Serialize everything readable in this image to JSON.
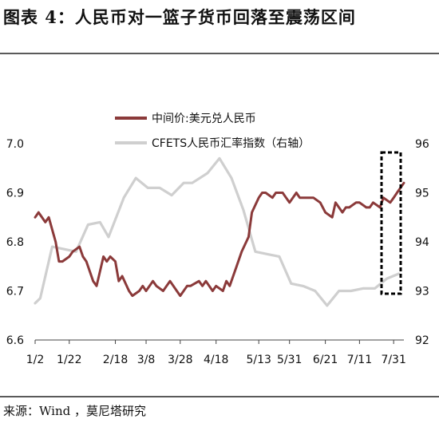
{
  "title": "图表 4：人民币对一篮子货币回落至震荡区间",
  "source": "来源：Wind ，莫尼塔研究",
  "chart_data": {
    "type": "line",
    "title": "图表 4：人民币对一篮子货币回落至震荡区间",
    "x_tick_labels": [
      "1/2",
      "1/22",
      "2/18",
      "3/8",
      "3/28",
      "4/18",
      "5/13",
      "5/31",
      "6/21",
      "7/11",
      "7/31"
    ],
    "y_left": {
      "ticks": [
        "6.6",
        "6.7",
        "6.8",
        "6.9",
        "7.0"
      ],
      "range": [
        6.6,
        7.0
      ]
    },
    "y_right": {
      "ticks": [
        "92",
        "93",
        "94",
        "95",
        "96"
      ],
      "range": [
        92,
        96
      ]
    },
    "grid": false,
    "legend_position": "top-center",
    "series": [
      {
        "name": "中间价:美元兑人民币",
        "axis": "left",
        "color": "#8b3a3a",
        "x": [
          "1/2",
          "1/4",
          "1/8",
          "1/10",
          "1/14",
          "1/16",
          "1/18",
          "1/22",
          "1/24",
          "1/28",
          "1/30",
          "2/1",
          "2/5",
          "2/7",
          "2/11",
          "2/13",
          "2/15",
          "2/18",
          "2/20",
          "2/22",
          "2/26",
          "2/28",
          "3/4",
          "3/6",
          "3/8",
          "3/12",
          "3/14",
          "3/18",
          "3/20",
          "3/22",
          "3/26",
          "3/28",
          "4/1",
          "4/3",
          "4/8",
          "4/10",
          "4/12",
          "4/16",
          "4/18",
          "4/22",
          "4/24",
          "4/26",
          "4/30",
          "5/3",
          "5/7",
          "5/9",
          "5/13",
          "5/15",
          "5/17",
          "5/21",
          "5/23",
          "5/27",
          "5/29",
          "5/31",
          "6/4",
          "6/6",
          "6/10",
          "6/12",
          "6/14",
          "6/18",
          "6/21",
          "6/25",
          "6/27",
          "7/1",
          "7/3",
          "7/5",
          "7/9",
          "7/11",
          "7/15",
          "7/17",
          "7/19",
          "7/23",
          "7/25",
          "7/29",
          "7/31",
          "8/2",
          "8/6"
        ],
        "values": [
          6.85,
          6.86,
          6.84,
          6.85,
          6.8,
          6.76,
          6.76,
          6.77,
          6.78,
          6.79,
          6.77,
          6.76,
          6.72,
          6.71,
          6.77,
          6.76,
          6.77,
          6.76,
          6.72,
          6.73,
          6.7,
          6.69,
          6.7,
          6.71,
          6.7,
          6.72,
          6.71,
          6.7,
          6.71,
          6.72,
          6.7,
          6.69,
          6.71,
          6.71,
          6.72,
          6.71,
          6.72,
          6.7,
          6.71,
          6.7,
          6.72,
          6.71,
          6.75,
          6.78,
          6.81,
          6.86,
          6.89,
          6.9,
          6.9,
          6.89,
          6.9,
          6.9,
          6.89,
          6.88,
          6.9,
          6.89,
          6.89,
          6.89,
          6.89,
          6.88,
          6.86,
          6.85,
          6.88,
          6.86,
          6.87,
          6.87,
          6.88,
          6.88,
          6.87,
          6.87,
          6.88,
          6.87,
          6.89,
          6.88,
          6.89,
          6.9,
          6.92
        ]
      },
      {
        "name": "CFETS人民币汇率指数（右轴）",
        "axis": "right",
        "color": "#cfcfcf",
        "x": [
          "1/2",
          "1/5",
          "1/12",
          "1/19",
          "1/26",
          "2/2",
          "2/9",
          "2/14",
          "2/23",
          "3/2",
          "3/9",
          "3/16",
          "3/23",
          "3/30",
          "4/4",
          "4/13",
          "4/20",
          "4/27",
          "5/4",
          "5/11",
          "5/18",
          "5/25",
          "6/1",
          "6/8",
          "6/15",
          "6/22",
          "6/29",
          "7/6",
          "7/13",
          "7/20",
          "7/27",
          "8/3"
        ],
        "values": [
          92.75,
          92.85,
          93.9,
          93.85,
          93.8,
          94.35,
          94.4,
          94.1,
          94.9,
          95.3,
          95.1,
          95.1,
          94.95,
          95.2,
          95.2,
          95.4,
          95.7,
          95.3,
          94.65,
          93.8,
          93.75,
          93.7,
          93.15,
          93.1,
          93.0,
          92.7,
          93.0,
          93.0,
          93.05,
          93.05,
          93.25,
          93.35
        ]
      }
    ]
  }
}
